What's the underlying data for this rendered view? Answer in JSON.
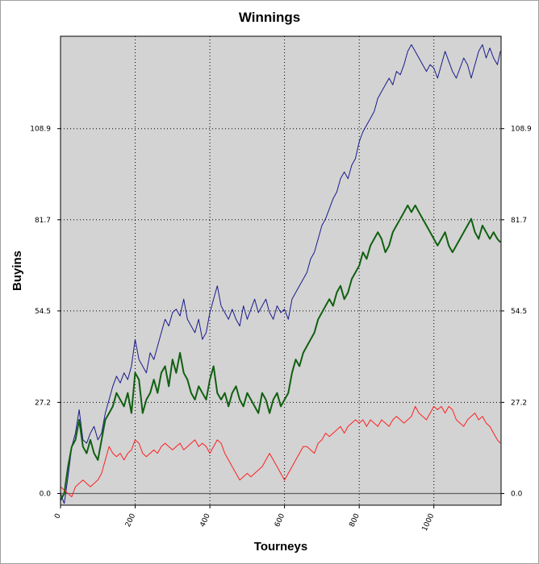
{
  "chart_data": {
    "type": "line",
    "title": "Winnings",
    "xlabel": "Tourneys",
    "ylabel": "Buyins",
    "xlim": [
      0,
      1180
    ],
    "ylim": [
      -3.5,
      136.5
    ],
    "x_ticks": [
      0,
      200,
      400,
      600,
      800,
      1000
    ],
    "y_ticks": [
      0.0,
      27.2,
      54.5,
      81.7,
      108.9
    ],
    "y_tick_labels": [
      "0.0",
      "27.2",
      "54.5",
      "81.7",
      "108.9"
    ],
    "grid": true,
    "legend": "none",
    "colors": {
      "plot_background": "#d3d3d3",
      "grid": "#000000",
      "zero_line": "#606060"
    },
    "series": [
      {
        "color": "#1a1a8c",
        "line_width": 1,
        "x": [
          0,
          10,
          20,
          30,
          40,
          50,
          60,
          70,
          80,
          90,
          100,
          110,
          120,
          130,
          140,
          150,
          160,
          170,
          180,
          190,
          200,
          210,
          220,
          230,
          240,
          250,
          260,
          270,
          280,
          290,
          300,
          310,
          320,
          330,
          340,
          350,
          360,
          370,
          380,
          390,
          400,
          410,
          420,
          430,
          440,
          450,
          460,
          470,
          480,
          490,
          500,
          510,
          520,
          530,
          540,
          550,
          560,
          570,
          580,
          590,
          600,
          610,
          620,
          630,
          640,
          650,
          660,
          670,
          680,
          690,
          700,
          710,
          720,
          730,
          740,
          750,
          760,
          770,
          780,
          790,
          800,
          810,
          820,
          830,
          840,
          850,
          860,
          870,
          880,
          890,
          900,
          910,
          920,
          930,
          940,
          950,
          960,
          970,
          980,
          990,
          1000,
          1010,
          1020,
          1030,
          1040,
          1050,
          1060,
          1070,
          1080,
          1090,
          1100,
          1110,
          1120,
          1130,
          1140,
          1150,
          1160,
          1170,
          1178
        ],
        "y": [
          0,
          -3,
          5,
          14,
          18,
          25,
          16,
          15,
          18,
          20,
          16,
          18,
          24,
          28,
          32,
          35,
          33,
          36,
          34,
          38,
          46,
          40,
          38,
          36,
          42,
          40,
          44,
          48,
          52,
          50,
          54,
          55,
          53,
          58,
          52,
          50,
          48,
          52,
          46,
          48,
          54,
          58,
          62,
          56,
          54,
          52,
          55,
          52,
          50,
          56,
          52,
          55,
          58,
          54,
          56,
          58,
          54,
          52,
          56,
          54,
          55,
          52,
          58,
          60,
          62,
          64,
          66,
          70,
          72,
          76,
          80,
          82,
          85,
          88,
          90,
          94,
          96,
          94,
          98,
          100,
          105,
          108,
          110,
          112,
          114,
          118,
          120,
          122,
          124,
          122,
          126,
          125,
          128,
          132,
          134,
          132,
          130,
          128,
          126,
          128,
          127,
          124,
          128,
          132,
          129,
          126,
          124,
          127,
          130,
          128,
          124,
          128,
          132,
          134,
          130,
          133,
          130,
          128,
          132
        ]
      },
      {
        "color": "#106010",
        "line_width": 2,
        "x": [
          0,
          10,
          20,
          30,
          40,
          50,
          60,
          70,
          80,
          90,
          100,
          110,
          120,
          130,
          140,
          150,
          160,
          170,
          180,
          190,
          200,
          210,
          220,
          230,
          240,
          250,
          260,
          270,
          280,
          290,
          300,
          310,
          320,
          330,
          340,
          350,
          360,
          370,
          380,
          390,
          400,
          410,
          420,
          430,
          440,
          450,
          460,
          470,
          480,
          490,
          500,
          510,
          520,
          530,
          540,
          550,
          560,
          570,
          580,
          590,
          600,
          610,
          620,
          630,
          640,
          650,
          660,
          670,
          680,
          690,
          700,
          710,
          720,
          730,
          740,
          750,
          760,
          770,
          780,
          790,
          800,
          810,
          820,
          830,
          840,
          850,
          860,
          870,
          880,
          890,
          900,
          910,
          920,
          930,
          940,
          950,
          960,
          970,
          980,
          990,
          1000,
          1010,
          1020,
          1030,
          1040,
          1050,
          1060,
          1070,
          1080,
          1090,
          1100,
          1110,
          1120,
          1130,
          1140,
          1150,
          1160,
          1170,
          1178
        ],
        "y": [
          -2,
          0,
          8,
          14,
          16,
          22,
          14,
          12,
          16,
          12,
          10,
          16,
          22,
          24,
          26,
          30,
          28,
          26,
          30,
          24,
          36,
          34,
          24,
          28,
          30,
          34,
          30,
          36,
          38,
          32,
          40,
          36,
          42,
          36,
          34,
          30,
          28,
          32,
          30,
          28,
          34,
          38,
          30,
          28,
          30,
          26,
          30,
          32,
          28,
          26,
          30,
          28,
          26,
          24,
          30,
          28,
          24,
          28,
          30,
          26,
          28,
          30,
          36,
          40,
          38,
          42,
          44,
          46,
          48,
          52,
          54,
          56,
          58,
          56,
          60,
          62,
          58,
          60,
          64,
          66,
          68,
          72,
          70,
          74,
          76,
          78,
          76,
          72,
          74,
          78,
          80,
          82,
          84,
          86,
          84,
          86,
          84,
          82,
          80,
          78,
          76,
          74,
          76,
          78,
          74,
          72,
          74,
          76,
          78,
          80,
          82,
          78,
          76,
          80,
          78,
          76,
          78,
          76,
          75
        ]
      },
      {
        "color": "#ff2020",
        "line_width": 1,
        "x": [
          0,
          10,
          20,
          30,
          40,
          50,
          60,
          70,
          80,
          90,
          100,
          110,
          120,
          130,
          140,
          150,
          160,
          170,
          180,
          190,
          200,
          210,
          220,
          230,
          240,
          250,
          260,
          270,
          280,
          290,
          300,
          310,
          320,
          330,
          340,
          350,
          360,
          370,
          380,
          390,
          400,
          410,
          420,
          430,
          440,
          450,
          460,
          470,
          480,
          490,
          500,
          510,
          520,
          530,
          540,
          550,
          560,
          570,
          580,
          590,
          600,
          610,
          620,
          630,
          640,
          650,
          660,
          670,
          680,
          690,
          700,
          710,
          720,
          730,
          740,
          750,
          760,
          770,
          780,
          790,
          800,
          810,
          820,
          830,
          840,
          850,
          860,
          870,
          880,
          890,
          900,
          910,
          920,
          930,
          940,
          950,
          960,
          970,
          980,
          990,
          1000,
          1010,
          1020,
          1030,
          1040,
          1050,
          1060,
          1070,
          1080,
          1090,
          1100,
          1110,
          1120,
          1130,
          1140,
          1150,
          1160,
          1170,
          1178
        ],
        "y": [
          2,
          1,
          0,
          -1,
          2,
          3,
          4,
          3,
          2,
          3,
          4,
          6,
          10,
          14,
          12,
          11,
          12,
          10,
          12,
          13,
          16,
          15,
          12,
          11,
          12,
          13,
          12,
          14,
          15,
          14,
          13,
          14,
          15,
          13,
          14,
          15,
          16,
          14,
          15,
          14,
          12,
          14,
          16,
          15,
          12,
          10,
          8,
          6,
          4,
          5,
          6,
          5,
          6,
          7,
          8,
          10,
          12,
          10,
          8,
          6,
          4,
          6,
          8,
          10,
          12,
          14,
          14,
          13,
          12,
          15,
          16,
          18,
          17,
          18,
          19,
          20,
          18,
          20,
          21,
          22,
          21,
          22,
          20,
          22,
          21,
          20,
          22,
          21,
          20,
          22,
          23,
          22,
          21,
          22,
          23,
          26,
          24,
          23,
          22,
          24,
          26,
          25,
          26,
          24,
          26,
          25,
          22,
          21,
          20,
          22,
          23,
          24,
          22,
          23,
          21,
          20,
          18,
          16,
          15
        ]
      }
    ]
  }
}
